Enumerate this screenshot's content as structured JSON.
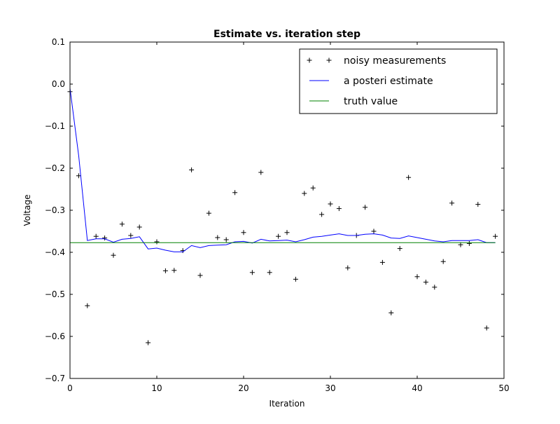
{
  "chart_data": {
    "type": "line",
    "title": "Estimate vs. iteration step",
    "xlabel": "Iteration",
    "ylabel": "Voltage",
    "xlim": [
      0,
      50
    ],
    "ylim": [
      -0.7,
      0.1
    ],
    "xticks": [
      "0",
      "10",
      "20",
      "30",
      "40",
      "50"
    ],
    "yticks": [
      "0.1",
      "0.0",
      "−0.1",
      "−0.2",
      "−0.3",
      "−0.4",
      "−0.5",
      "−0.6",
      "−0.7"
    ],
    "grid": false,
    "legend": {
      "placement": "top-right"
    },
    "series": [
      {
        "name": "noisy measurements",
        "style": "markers",
        "marker": "+",
        "color": "#000000",
        "x": [
          0,
          1,
          2,
          3,
          4,
          5,
          6,
          7,
          8,
          9,
          10,
          11,
          12,
          13,
          14,
          15,
          16,
          17,
          18,
          19,
          20,
          21,
          22,
          23,
          24,
          25,
          26,
          27,
          28,
          29,
          30,
          31,
          32,
          33,
          34,
          35,
          36,
          37,
          38,
          39,
          40,
          41,
          42,
          43,
          44,
          45,
          46,
          47,
          48,
          49
        ],
        "y": [
          -0.018,
          -0.218,
          -0.527,
          -0.362,
          -0.366,
          -0.407,
          -0.333,
          -0.36,
          -0.34,
          -0.615,
          -0.375,
          -0.444,
          -0.443,
          -0.396,
          -0.204,
          -0.455,
          -0.307,
          -0.365,
          -0.37,
          -0.258,
          -0.353,
          -0.448,
          -0.21,
          -0.448,
          -0.362,
          -0.353,
          -0.464,
          -0.26,
          -0.247,
          -0.31,
          -0.285,
          -0.296,
          -0.437,
          -0.36,
          -0.293,
          -0.35,
          -0.424,
          -0.544,
          -0.391,
          -0.222,
          -0.458,
          -0.471,
          -0.483,
          -0.422,
          -0.283,
          -0.382,
          -0.379,
          -0.286,
          -0.58,
          -0.362
        ]
      },
      {
        "name": "a posteri estimate",
        "style": "line",
        "color": "#0000ff",
        "x": [
          0,
          1,
          2,
          3,
          4,
          5,
          6,
          7,
          8,
          9,
          10,
          11,
          12,
          13,
          14,
          15,
          16,
          17,
          18,
          19,
          20,
          21,
          22,
          23,
          24,
          25,
          26,
          27,
          28,
          29,
          30,
          31,
          32,
          33,
          34,
          35,
          36,
          37,
          38,
          39,
          40,
          41,
          42,
          43,
          44,
          45,
          46,
          47,
          48,
          49
        ],
        "y": [
          -0.01,
          -0.17,
          -0.372,
          -0.368,
          -0.368,
          -0.376,
          -0.369,
          -0.367,
          -0.363,
          -0.392,
          -0.39,
          -0.395,
          -0.399,
          -0.399,
          -0.384,
          -0.389,
          -0.384,
          -0.383,
          -0.382,
          -0.375,
          -0.374,
          -0.378,
          -0.369,
          -0.373,
          -0.372,
          -0.371,
          -0.375,
          -0.37,
          -0.364,
          -0.362,
          -0.359,
          -0.356,
          -0.36,
          -0.36,
          -0.357,
          -0.356,
          -0.359,
          -0.366,
          -0.367,
          -0.361,
          -0.365,
          -0.369,
          -0.373,
          -0.375,
          -0.372,
          -0.372,
          -0.372,
          -0.37,
          -0.377,
          -0.377
        ]
      },
      {
        "name": "truth value",
        "style": "line",
        "color": "#008000",
        "x": [
          0,
          49
        ],
        "y": [
          -0.377,
          -0.377
        ]
      }
    ]
  }
}
